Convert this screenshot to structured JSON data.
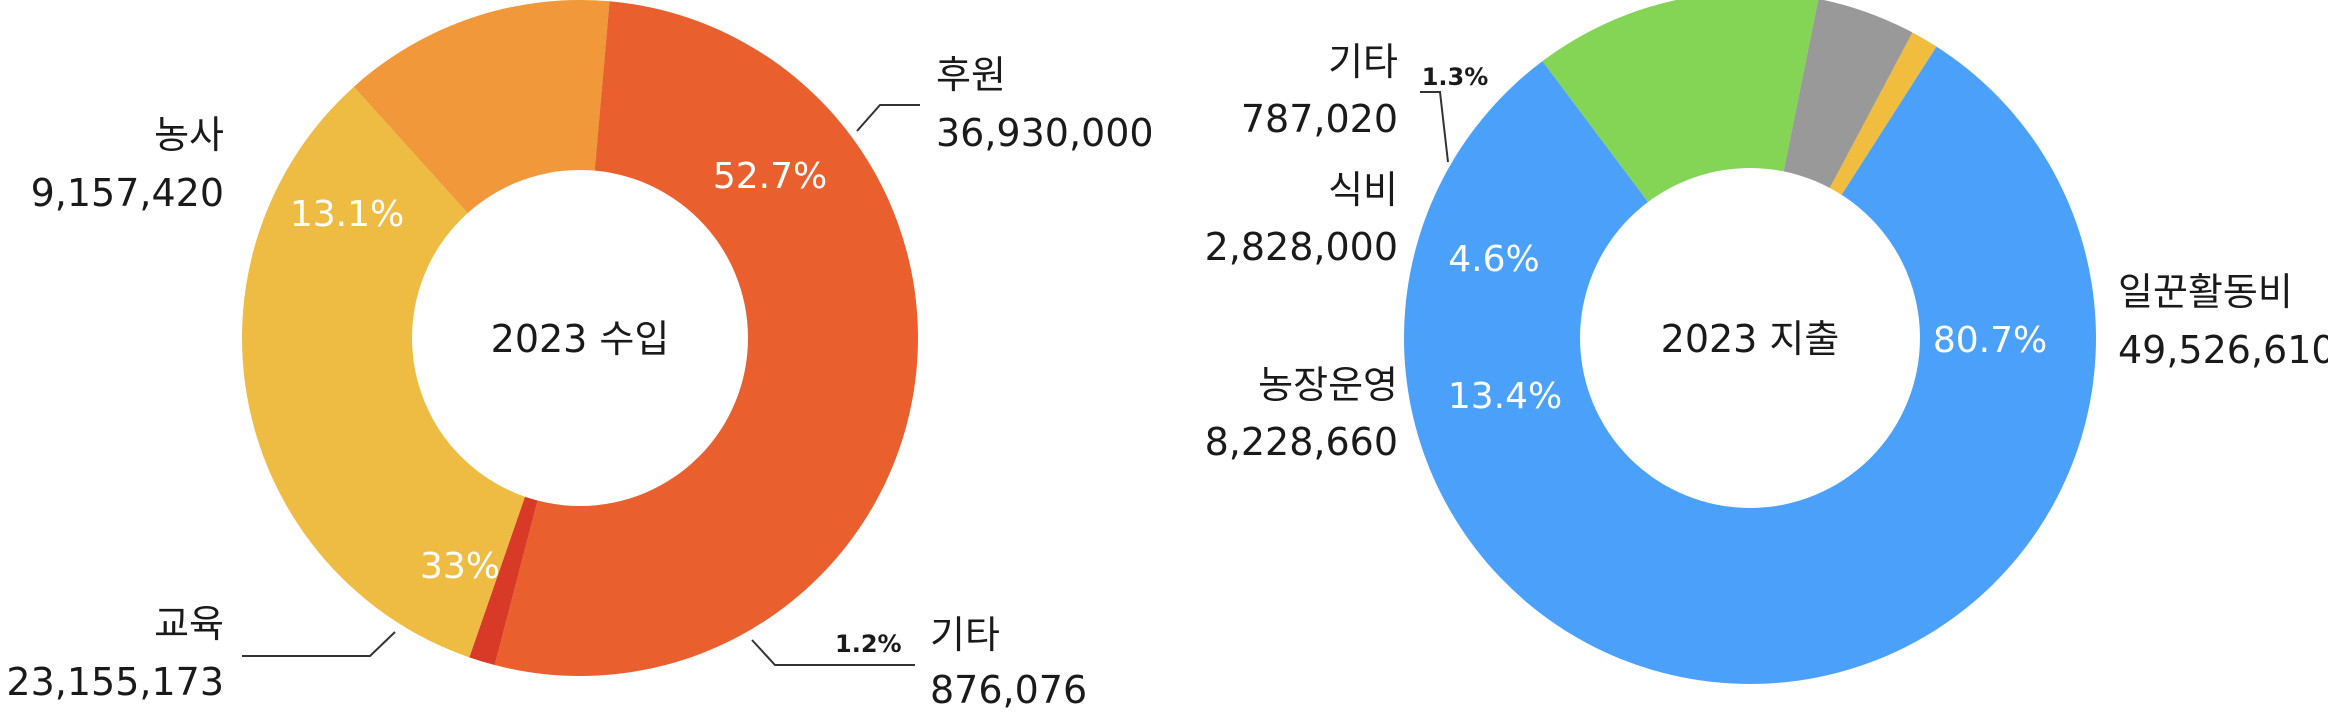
{
  "chart_data": [
    {
      "type": "pie",
      "title": "2023 수입",
      "slices": [
        {
          "label": "후원",
          "value": 36930000,
          "value_label": "36,930,000",
          "percent_label": "52.7%",
          "color": "#E9602E"
        },
        {
          "label": "기타",
          "value": 876076,
          "value_label": "876,076",
          "percent_label": "1.2%",
          "color": "#D83A27"
        },
        {
          "label": "교육",
          "value": 23155173,
          "value_label": "23,155,173",
          "percent_label": "33%",
          "color": "#EEBB43"
        },
        {
          "label": "농사",
          "value": 9157420,
          "value_label": "9,157,420",
          "percent_label": "13.1%",
          "color": "#F0983A"
        }
      ]
    },
    {
      "type": "pie",
      "title": "2023 지출",
      "slices": [
        {
          "label": "일꾼활동비",
          "value": 49526610,
          "value_label": "49,526,610",
          "percent_label": "80.7%",
          "color": "#4BA1F9"
        },
        {
          "label": "농장운영",
          "value": 8228660,
          "value_label": "8,228,660",
          "percent_label": "13.4%",
          "color": "#84D456"
        },
        {
          "label": "식비",
          "value": 2828000,
          "value_label": "2,828,000",
          "percent_label": "4.6%",
          "color": "#999999"
        },
        {
          "label": "기타",
          "value": 787020,
          "value_label": "787,020",
          "percent_label": "1.3%",
          "color": "#F0BD3E"
        }
      ]
    }
  ]
}
